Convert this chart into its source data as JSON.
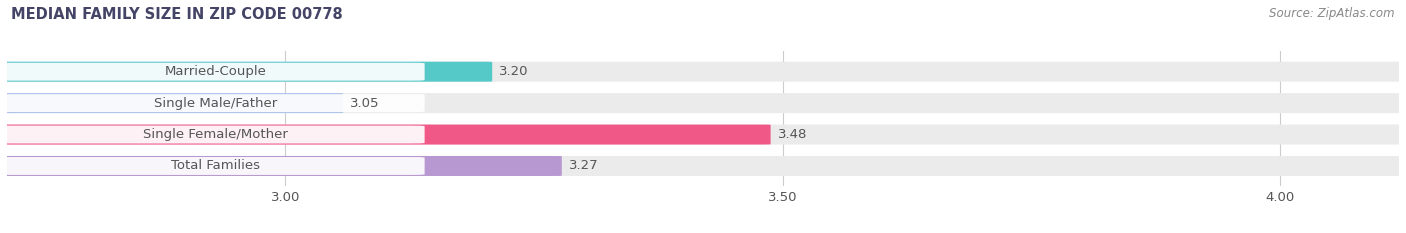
{
  "title": "MEDIAN FAMILY SIZE IN ZIP CODE 00778",
  "source": "Source: ZipAtlas.com",
  "categories": [
    "Married-Couple",
    "Single Male/Father",
    "Single Female/Mother",
    "Total Families"
  ],
  "values": [
    3.2,
    3.05,
    3.48,
    3.27
  ],
  "bar_colors": [
    "#55c8c8",
    "#aac0e8",
    "#f05888",
    "#b898d0"
  ],
  "bar_bg_color": "#ebebeb",
  "xlim_left": 2.72,
  "xlim_right": 4.12,
  "xticks": [
    3.0,
    3.5,
    4.0
  ],
  "xtick_labels": [
    "3.00",
    "3.50",
    "4.00"
  ],
  "bar_height": 0.62,
  "label_fontsize": 9.5,
  "value_fontsize": 9.5,
  "title_fontsize": 10.5,
  "source_fontsize": 8.5,
  "bg_color": "#ffffff",
  "grid_color": "#cccccc",
  "text_color": "#555555",
  "title_color": "#444466"
}
